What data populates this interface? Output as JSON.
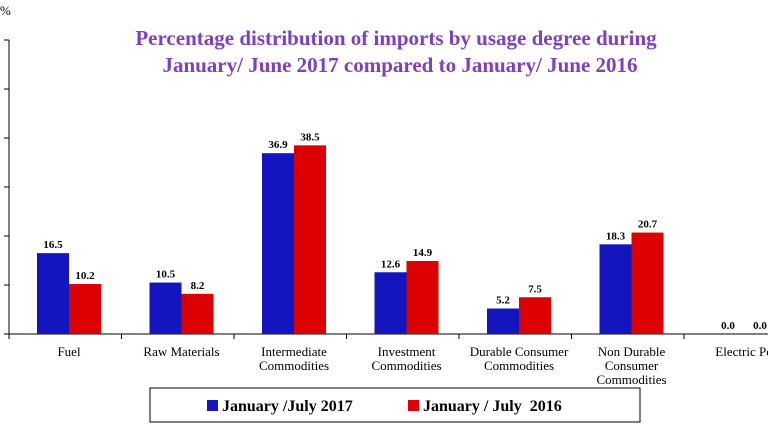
{
  "chart_data": {
    "type": "bar",
    "title": "Percentage distribution of imports by usage degree during",
    "subtitle": "January/ June 2017 compared to January/ June 2016",
    "ylabel": "%",
    "ylim": [
      0,
      60
    ],
    "y_gridlines": false,
    "categories": [
      "Fuel",
      "Raw Materials",
      "Intermediate Commodities",
      "Investment Commodities",
      "Durable Consumer Commodities",
      "Non Durable Consumer Commodities",
      "Electric Po"
    ],
    "category_lines": [
      [
        "Fuel"
      ],
      [
        "Raw Materials"
      ],
      [
        "Intermediate",
        "Commodities"
      ],
      [
        "Investment",
        "Commodities"
      ],
      [
        "Durable Consumer",
        "Commodities"
      ],
      [
        "Non Durable",
        "Consumer",
        "Commodities"
      ],
      [
        "Electric Po"
      ]
    ],
    "series": [
      {
        "name": "January /July 2017",
        "color": "#1515c0",
        "values": [
          16.5,
          10.5,
          36.9,
          12.6,
          5.2,
          18.3,
          0.0
        ],
        "labels": [
          "16.5",
          "10.5",
          "36.9",
          "12.6",
          "5.2",
          "18.3",
          "0.0"
        ]
      },
      {
        "name": "January / July  2016",
        "color": "#dd0000",
        "values": [
          10.2,
          8.2,
          38.5,
          14.9,
          7.5,
          20.7,
          0.0
        ],
        "labels": [
          "10.2",
          "8.2",
          "38.5",
          "14.9",
          "7.5",
          "20.7",
          "0.0"
        ]
      }
    ],
    "legend_position": "bottom"
  }
}
